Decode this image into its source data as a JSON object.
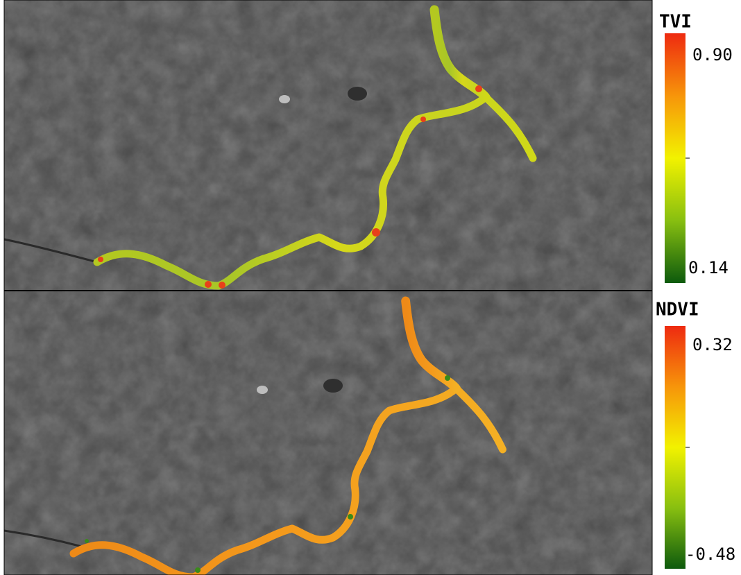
{
  "panels": [
    {
      "title": "TVI",
      "max_label": "0.90",
      "min_label": "0.14"
    },
    {
      "title": "NDVI",
      "max_label": "0.32",
      "min_label": "-0.48"
    }
  ]
}
